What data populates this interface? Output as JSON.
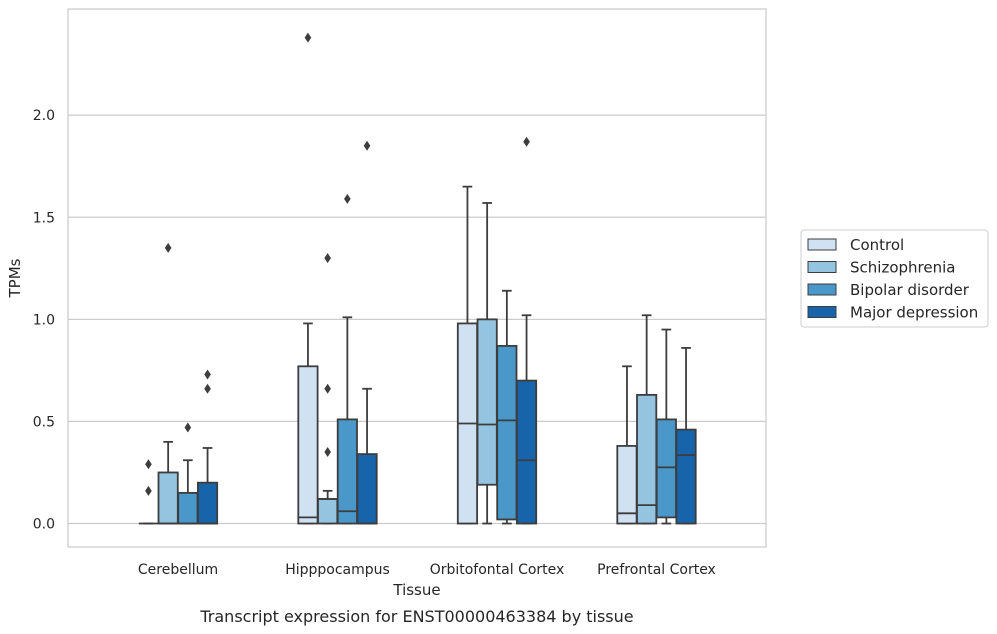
{
  "chart_data": {
    "type": "boxplot",
    "caption": "Transcript expression for ENST00000463384 by tissue",
    "xlabel": "Tissue",
    "ylabel": "TPMs",
    "ylim": [
      -0.115,
      2.52
    ],
    "yticks": [
      0.0,
      0.5,
      1.0,
      1.5,
      2.0
    ],
    "ytick_labels": [
      "0.0",
      "0.5",
      "1.0",
      "1.5",
      "2.0"
    ],
    "grid": "horizontal",
    "legend_position": "right",
    "categories": [
      "Cerebellum",
      "Hipppocampus",
      "Orbitofontal Cortex",
      "Prefrontal Cortex"
    ],
    "series": [
      {
        "name": "Control",
        "color": "#d0e1f2",
        "boxes": [
          {
            "whislo": 0,
            "q1": 0,
            "med": 0,
            "q3": 0,
            "whishi": 0,
            "fliers": [
              0.16,
              0.29
            ]
          },
          {
            "whislo": 0,
            "q1": 0,
            "med": 0.03,
            "q3": 0.77,
            "whishi": 0.98,
            "fliers": [
              2.38
            ]
          },
          {
            "whislo": 0,
            "q1": 0,
            "med": 0.49,
            "q3": 0.98,
            "whishi": 1.65,
            "fliers": []
          },
          {
            "whislo": 0,
            "q1": 0,
            "med": 0.05,
            "q3": 0.38,
            "whishi": 0.77,
            "fliers": []
          }
        ]
      },
      {
        "name": "Schizophrenia",
        "color": "#94c4df",
        "boxes": [
          {
            "whislo": 0,
            "q1": 0,
            "med": 0,
            "q3": 0.25,
            "whishi": 0.4,
            "fliers": [
              1.35
            ]
          },
          {
            "whislo": 0,
            "q1": 0,
            "med": 0.12,
            "q3": 0.12,
            "whishi": 0.16,
            "fliers": [
              0.35,
              0.66,
              1.3
            ]
          },
          {
            "whislo": 0,
            "q1": 0.19,
            "med": 0.485,
            "q3": 1.0,
            "whishi": 1.57,
            "fliers": []
          },
          {
            "whislo": 0,
            "q1": 0,
            "med": 0.09,
            "q3": 0.63,
            "whishi": 1.02,
            "fliers": []
          }
        ]
      },
      {
        "name": "Bipolar disorder",
        "color": "#4a98c9",
        "boxes": [
          {
            "whislo": 0,
            "q1": 0,
            "med": 0,
            "q3": 0.15,
            "whishi": 0.31,
            "fliers": [
              0.47
            ]
          },
          {
            "whislo": 0,
            "q1": 0,
            "med": 0.06,
            "q3": 0.51,
            "whishi": 1.01,
            "fliers": [
              1.59
            ]
          },
          {
            "whislo": 0,
            "q1": 0.02,
            "med": 0.505,
            "q3": 0.87,
            "whishi": 1.14,
            "fliers": []
          },
          {
            "whislo": 0,
            "q1": 0.03,
            "med": 0.275,
            "q3": 0.51,
            "whishi": 0.95,
            "fliers": []
          }
        ]
      },
      {
        "name": "Major depression",
        "color": "#1764ab",
        "boxes": [
          {
            "whislo": 0,
            "q1": 0,
            "med": 0,
            "q3": 0.2,
            "whishi": 0.37,
            "fliers": [
              0.66,
              0.73
            ]
          },
          {
            "whislo": 0,
            "q1": 0,
            "med": 0,
            "q3": 0.34,
            "whishi": 0.66,
            "fliers": [
              1.85
            ]
          },
          {
            "whislo": 0,
            "q1": 0,
            "med": 0.31,
            "q3": 0.7,
            "whishi": 1.02,
            "fliers": [
              1.87
            ]
          },
          {
            "whislo": 0,
            "q1": 0,
            "med": 0.335,
            "q3": 0.46,
            "whishi": 0.86,
            "fliers": []
          }
        ]
      }
    ]
  }
}
